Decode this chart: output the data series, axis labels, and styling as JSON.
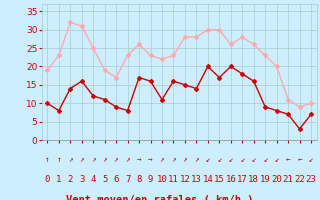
{
  "x": [
    0,
    1,
    2,
    3,
    4,
    5,
    6,
    7,
    8,
    9,
    10,
    11,
    12,
    13,
    14,
    15,
    16,
    17,
    18,
    19,
    20,
    21,
    22,
    23
  ],
  "wind_avg": [
    10,
    8,
    14,
    16,
    12,
    11,
    9,
    8,
    17,
    16,
    11,
    16,
    15,
    14,
    20,
    17,
    20,
    18,
    16,
    9,
    8,
    7,
    3,
    7
  ],
  "wind_gust": [
    19,
    23,
    32,
    31,
    25,
    19,
    17,
    23,
    26,
    23,
    22,
    23,
    28,
    28,
    30,
    30,
    26,
    28,
    26,
    23,
    20,
    11,
    9,
    10
  ],
  "avg_color": "#cc0000",
  "gust_color": "#ffaaaa",
  "bg_color": "#cceeff",
  "grid_color": "#aacccc",
  "xlabel": "Vent moyen/en rafales ( km/h )",
  "xlabel_color": "#cc0000",
  "tick_color": "#cc0000",
  "arrow_color": "#cc0000",
  "ylim": [
    0,
    37
  ],
  "yticks": [
    0,
    5,
    10,
    15,
    20,
    25,
    30,
    35
  ],
  "arrows": [
    "↑",
    "↑",
    "↗",
    "↗",
    "↗",
    "↗",
    "↗",
    "↗",
    "→",
    "→",
    "↗",
    "↗",
    "↗",
    "↗",
    "↙",
    "↙",
    "↙",
    "↙",
    "↙",
    "↙",
    "↙",
    "←",
    "←",
    "↙"
  ],
  "label_fontsize": 7.5,
  "tick_fontsize": 6.5,
  "arrow_fontsize": 5.5
}
